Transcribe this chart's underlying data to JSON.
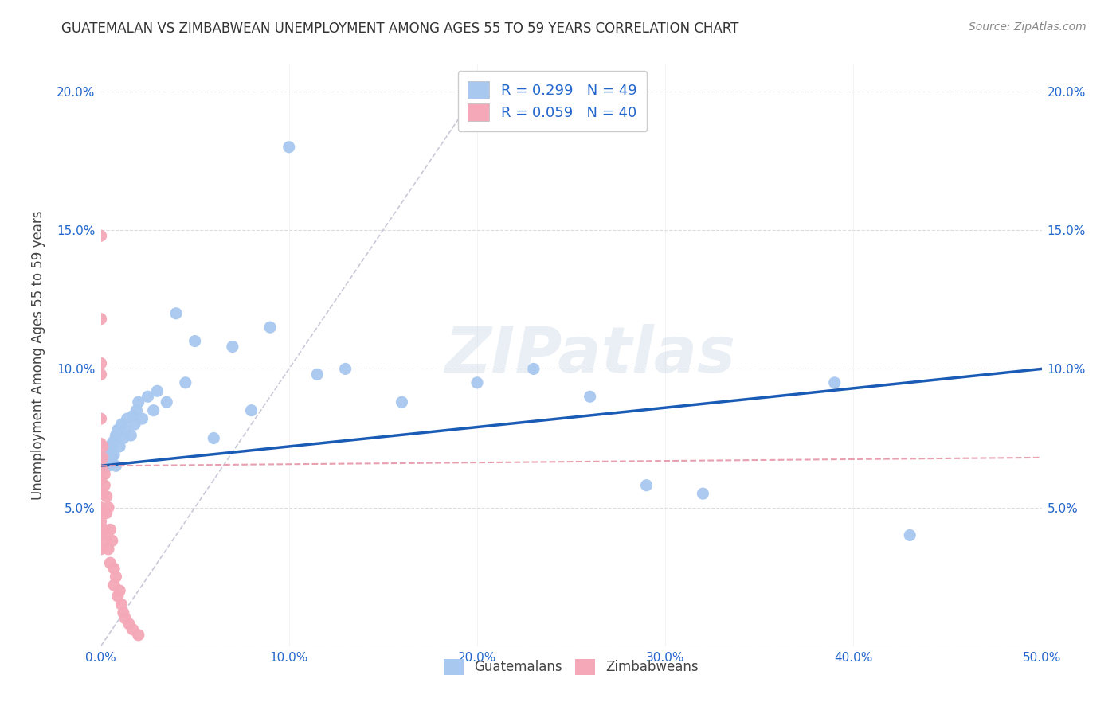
{
  "title": "GUATEMALAN VS ZIMBABWEAN UNEMPLOYMENT AMONG AGES 55 TO 59 YEARS CORRELATION CHART",
  "source": "Source: ZipAtlas.com",
  "ylabel": "Unemployment Among Ages 55 to 59 years",
  "x_min": 0.0,
  "x_max": 0.5,
  "y_min": 0.0,
  "y_max": 0.21,
  "x_ticks": [
    0.0,
    0.1,
    0.2,
    0.3,
    0.4,
    0.5
  ],
  "x_tick_labels": [
    "0.0%",
    "10.0%",
    "20.0%",
    "30.0%",
    "40.0%",
    "50.0%"
  ],
  "y_ticks": [
    0.0,
    0.05,
    0.1,
    0.15,
    0.2
  ],
  "y_tick_labels": [
    "",
    "5.0%",
    "10.0%",
    "15.0%",
    "20.0%"
  ],
  "guatemalan_R": 0.299,
  "guatemalan_N": 49,
  "zimbabwean_R": 0.059,
  "zimbabwean_N": 40,
  "guatemalan_color": "#a8c8f0",
  "zimbabwean_color": "#f4a8b8",
  "guatemalan_line_color": "#1a5bb5",
  "zimbabwean_line_color": "#e8a0b0",
  "diagonal_line_color": "#c8c8d8",
  "background_color": "#ffffff",
  "watermark": "ZIPatlas",
  "legend_guatemalans": "Guatemalans",
  "legend_zimbabweans": "Zimbabweans",
  "guatemalan_x": [
    0.001,
    0.002,
    0.002,
    0.003,
    0.003,
    0.004,
    0.004,
    0.005,
    0.005,
    0.006,
    0.006,
    0.007,
    0.007,
    0.008,
    0.008,
    0.009,
    0.01,
    0.011,
    0.012,
    0.013,
    0.014,
    0.016,
    0.017,
    0.018,
    0.019,
    0.02,
    0.022,
    0.025,
    0.028,
    0.03,
    0.035,
    0.04,
    0.045,
    0.05,
    0.06,
    0.07,
    0.08,
    0.09,
    0.1,
    0.115,
    0.13,
    0.16,
    0.2,
    0.23,
    0.26,
    0.29,
    0.32,
    0.39,
    0.43
  ],
  "guatemalan_y": [
    0.065,
    0.065,
    0.068,
    0.067,
    0.065,
    0.066,
    0.065,
    0.072,
    0.07,
    0.073,
    0.068,
    0.074,
    0.069,
    0.076,
    0.065,
    0.078,
    0.072,
    0.08,
    0.075,
    0.078,
    0.082,
    0.076,
    0.083,
    0.08,
    0.085,
    0.088,
    0.082,
    0.09,
    0.085,
    0.092,
    0.088,
    0.12,
    0.095,
    0.11,
    0.075,
    0.108,
    0.085,
    0.115,
    0.18,
    0.098,
    0.1,
    0.088,
    0.095,
    0.1,
    0.09,
    0.058,
    0.055,
    0.095,
    0.04
  ],
  "zimbabwean_x": [
    0.0,
    0.0,
    0.0,
    0.0,
    0.0,
    0.0,
    0.0,
    0.0,
    0.0,
    0.0,
    0.0,
    0.0,
    0.0,
    0.001,
    0.001,
    0.001,
    0.001,
    0.001,
    0.002,
    0.002,
    0.002,
    0.003,
    0.003,
    0.003,
    0.004,
    0.004,
    0.005,
    0.005,
    0.006,
    0.007,
    0.007,
    0.008,
    0.009,
    0.01,
    0.011,
    0.012,
    0.013,
    0.015,
    0.017,
    0.02
  ],
  "zimbabwean_y": [
    0.148,
    0.118,
    0.102,
    0.098,
    0.082,
    0.073,
    0.065,
    0.06,
    0.055,
    0.05,
    0.045,
    0.04,
    0.035,
    0.072,
    0.068,
    0.064,
    0.055,
    0.048,
    0.062,
    0.058,
    0.042,
    0.054,
    0.048,
    0.038,
    0.05,
    0.035,
    0.042,
    0.03,
    0.038,
    0.028,
    0.022,
    0.025,
    0.018,
    0.02,
    0.015,
    0.012,
    0.01,
    0.008,
    0.006,
    0.004
  ]
}
